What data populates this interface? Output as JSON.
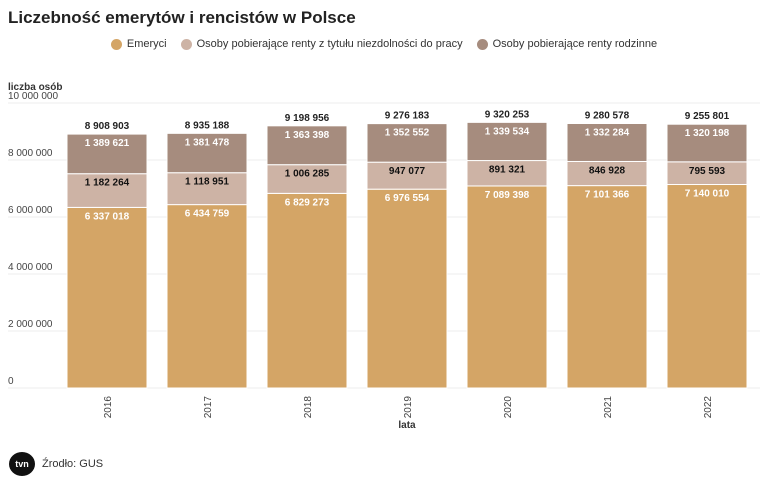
{
  "chart_data": {
    "type": "bar",
    "stacked": true,
    "title": "Liczebność emerytów i rencistów w Polsce",
    "xlabel": "lata",
    "ylabel": "liczba osób",
    "ylim": [
      0,
      10000000
    ],
    "yticks": [
      "0",
      "2 000 000",
      "4 000 000",
      "6 000 000",
      "8 000 000",
      "10 000 000"
    ],
    "ytick_values": [
      0,
      2000000,
      4000000,
      6000000,
      8000000,
      10000000
    ],
    "categories": [
      "2016",
      "2017",
      "2018",
      "2019",
      "2020",
      "2021",
      "2022"
    ],
    "series": [
      {
        "name": "Emeryci",
        "color": "#d4a566",
        "label_color": "#ffffff",
        "values": [
          6337018,
          6434759,
          6829273,
          6976554,
          7089398,
          7101366,
          7140010
        ],
        "labels": [
          "6 337 018",
          "6 434 759",
          "6 829 273",
          "6 976 554",
          "7 089 398",
          "7 101 366",
          "7 140 010"
        ]
      },
      {
        "name": "Osoby pobierające renty z tytułu niezdolności do pracy",
        "color": "#cdb3a5",
        "label_color": "#111111",
        "values": [
          1182264,
          1118951,
          1006285,
          947077,
          891321,
          846928,
          795593
        ],
        "labels": [
          "1 182 264",
          "1 118 951",
          "1 006 285",
          "947 077",
          "891 321",
          "846 928",
          "795 593"
        ]
      },
      {
        "name": "Osoby pobierające renty rodzinne",
        "color": "#a68c7e",
        "label_color": "#ffffff",
        "values": [
          1389621,
          1381478,
          1363398,
          1352552,
          1339534,
          1332284,
          1320198
        ],
        "labels": [
          "1 389 621",
          "1 381 478",
          "1 363 398",
          "1 352 552",
          "1 339 534",
          "1 332 284",
          "1 320 198"
        ]
      }
    ],
    "totals": [
      "8 908 903",
      "8 935 188",
      "9 198 956",
      "9 276 183",
      "9 320 253",
      "9 280 578",
      "9 255 801"
    ],
    "legend_position": "top-center",
    "grid": true
  },
  "source": "Źrodło: GUS",
  "logo_text": "tvn24"
}
